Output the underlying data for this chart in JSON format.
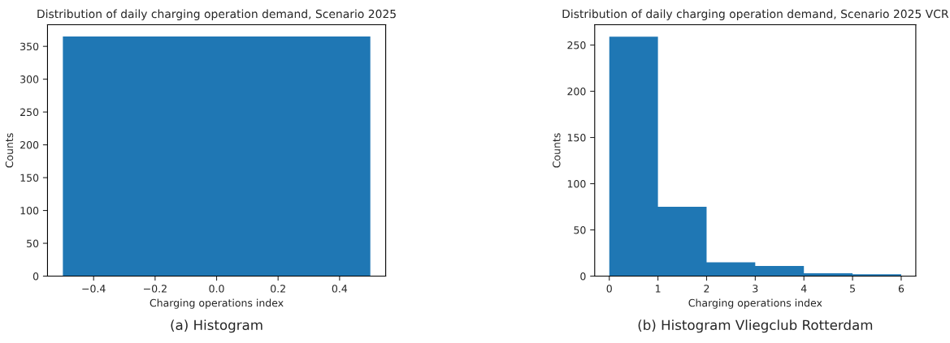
{
  "chart_data": [
    {
      "type": "histogram",
      "title": "Distribution of daily charging operation demand, Scenario 2025",
      "xlabel": "Charging operations index",
      "ylabel": "Counts",
      "bins": [
        -0.5,
        0.5
      ],
      "values": [
        365
      ],
      "color": "#1f77b4",
      "xlim": [
        -0.55,
        0.55
      ],
      "xticks": [
        {
          "value": -0.4,
          "label": "−0.4"
        },
        {
          "value": -0.2,
          "label": "−0.2"
        },
        {
          "value": 0.0,
          "label": "0.0"
        },
        {
          "value": 0.2,
          "label": "0.2"
        },
        {
          "value": 0.4,
          "label": "0.4"
        }
      ],
      "ylim": [
        0,
        383
      ],
      "yticks": [
        0,
        50,
        100,
        150,
        200,
        250,
        300,
        350
      ],
      "grid": false,
      "annotations": [
        "(a) Histogram"
      ]
    },
    {
      "type": "histogram",
      "title": "Distribution of daily charging operation demand, Scenario 2025 VCR",
      "xlabel": "Charging operations index",
      "ylabel": "Counts",
      "bins": [
        0,
        1,
        2,
        3,
        4,
        5,
        6
      ],
      "values": [
        259,
        75,
        15,
        11,
        3,
        2
      ],
      "color": "#1f77b4",
      "xlim": [
        -0.3,
        6.3
      ],
      "xticks": [
        0,
        1,
        2,
        3,
        4,
        5,
        6
      ],
      "ylim": [
        0,
        272
      ],
      "yticks": [
        0,
        50,
        100,
        150,
        200,
        250
      ],
      "grid": false,
      "annotations": [
        "(b) Histogram Vliegclub Rotterdam"
      ]
    }
  ]
}
